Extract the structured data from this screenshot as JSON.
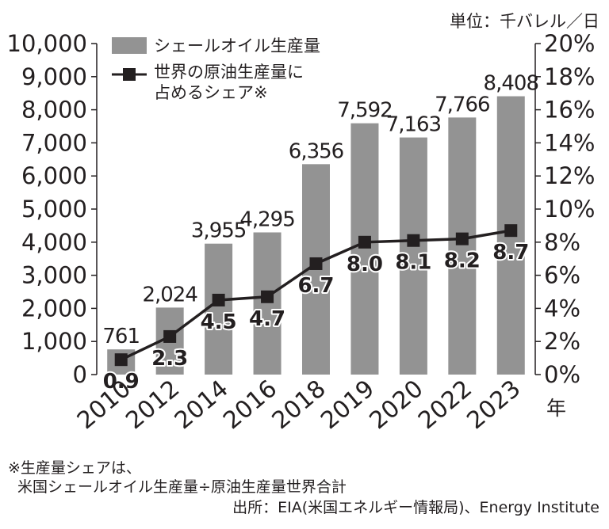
{
  "chart_data": {
    "type": "bar",
    "unit_label": "単位：千バレル／日",
    "categories": [
      "2010",
      "2012",
      "2014",
      "2016",
      "2018",
      "2019",
      "2020",
      "2022",
      "2023"
    ],
    "x_unit": "年",
    "series": [
      {
        "name": "シェールオイル生産量",
        "type": "bar",
        "axis": "left",
        "values": [
          761,
          2024,
          3955,
          4295,
          6356,
          7592,
          7163,
          7766,
          8408
        ],
        "labels": [
          "761",
          "2,024",
          "3,955",
          "4,295",
          "6,356",
          "7,592",
          "7,163",
          "7,766",
          "8,408"
        ]
      },
      {
        "name_lines": [
          "世界の原油生産量に",
          "占めるシェア※"
        ],
        "type": "line",
        "axis": "right",
        "values": [
          0.9,
          2.3,
          4.5,
          4.7,
          6.7,
          8.0,
          8.1,
          8.2,
          8.7
        ],
        "labels": [
          "0.9",
          "2.3",
          "4.5",
          "4.7",
          "6.7",
          "8.0",
          "8.1",
          "8.2",
          "8.7"
        ]
      }
    ],
    "y_left": {
      "range": [
        0,
        10000
      ],
      "ticks": [
        "0",
        "1,000",
        "2,000",
        "3,000",
        "4,000",
        "5,000",
        "6,000",
        "7,000",
        "8,000",
        "9,000",
        "10,000"
      ]
    },
    "y_right": {
      "range": [
        0,
        20
      ],
      "ticks": [
        "0%",
        "2%",
        "4%",
        "6%",
        "8%",
        "10%",
        "12%",
        "14%",
        "16%",
        "18%",
        "20%"
      ]
    },
    "grid": false,
    "legend_position": "top-left",
    "colors": {
      "bar": "#939393",
      "line": "#231f20",
      "text": "#231f20"
    }
  },
  "notes": {
    "footnote_1": "※生産量シェアは、",
    "footnote_2": "米国シェールオイル生産量÷原油生産量世界合計",
    "source": "出所：EIA(米国エネルギー情報局)、Energy Institute"
  }
}
